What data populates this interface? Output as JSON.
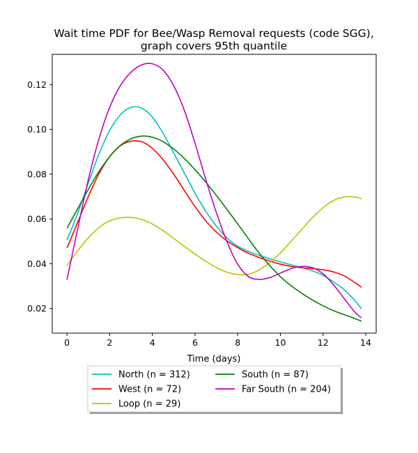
{
  "chart_data": {
    "type": "line",
    "title": "Wait time PDF for Bee/Wasp Removal  requests (code SGG),",
    "subtitle": "graph covers 95th quantile",
    "xlabel": "Time (days)",
    "ylabel": "",
    "xlim": [
      -0.69,
      14.49
    ],
    "ylim": [
      0.009,
      0.1335
    ],
    "xticks": [
      0,
      2,
      4,
      6,
      8,
      10,
      12,
      14
    ],
    "yticks": [
      0.02,
      0.04,
      0.06,
      0.08,
      0.1,
      0.12
    ],
    "ytick_labels": [
      "0.02",
      "0.04",
      "0.06",
      "0.08",
      "0.10",
      "0.12"
    ],
    "grid": false,
    "legend_position": "below-center",
    "legend_columns": 2,
    "series": [
      {
        "name": "North (n = 312)",
        "color": "#00bfbf",
        "x": [
          0,
          0.5,
          1,
          1.5,
          2,
          2.5,
          3,
          3.5,
          4,
          4.5,
          5,
          5.5,
          6,
          6.5,
          7,
          7.5,
          8,
          8.5,
          9,
          9.5,
          10,
          10.5,
          11,
          11.5,
          12,
          12.5,
          13,
          13.5,
          13.8
        ],
        "y": [
          0.0505,
          0.0625,
          0.076,
          0.089,
          0.0995,
          0.1065,
          0.1098,
          0.1095,
          0.1055,
          0.0983,
          0.0895,
          0.0805,
          0.0715,
          0.0635,
          0.0568,
          0.0515,
          0.0478,
          0.0455,
          0.0437,
          0.0422,
          0.0408,
          0.0395,
          0.0383,
          0.0368,
          0.0348,
          0.0318,
          0.0283,
          0.0235,
          0.0198
        ]
      },
      {
        "name": "West (n = 72)",
        "color": "#ff0000",
        "x": [
          0,
          0.5,
          1,
          1.5,
          2,
          2.5,
          3,
          3.5,
          4,
          4.5,
          5,
          5.5,
          6,
          6.5,
          7,
          7.5,
          8,
          8.5,
          9,
          9.5,
          10,
          10.5,
          11,
          11.5,
          12,
          12.5,
          13,
          13.5,
          13.8
        ],
        "y": [
          0.047,
          0.0585,
          0.07,
          0.0802,
          0.0878,
          0.0927,
          0.0947,
          0.0945,
          0.0915,
          0.0865,
          0.08,
          0.0727,
          0.0655,
          0.0592,
          0.0542,
          0.0502,
          0.0472,
          0.0447,
          0.0428,
          0.0412,
          0.0398,
          0.0388,
          0.0382,
          0.0378,
          0.0373,
          0.0363,
          0.0345,
          0.0315,
          0.0295
        ]
      },
      {
        "name": "Loop (n = 29)",
        "color": "#bfbf00",
        "x": [
          0,
          0.5,
          1,
          1.5,
          2,
          2.5,
          3,
          3.5,
          4,
          4.5,
          5,
          5.5,
          6,
          6.5,
          7,
          7.5,
          8,
          8.5,
          9,
          9.5,
          10,
          10.5,
          11,
          11.5,
          12,
          12.5,
          13,
          13.5,
          13.8
        ],
        "y": [
          0.0392,
          0.0458,
          0.0515,
          0.0562,
          0.0591,
          0.0605,
          0.0607,
          0.0598,
          0.0577,
          0.0548,
          0.0513,
          0.0478,
          0.0443,
          0.0411,
          0.0383,
          0.0362,
          0.0352,
          0.0353,
          0.0372,
          0.0405,
          0.0448,
          0.05,
          0.0553,
          0.0605,
          0.065,
          0.0683,
          0.0698,
          0.0698,
          0.069
        ]
      },
      {
        "name": "South (n = 87)",
        "color": "#008000",
        "x": [
          0,
          0.5,
          1,
          1.5,
          2,
          2.5,
          3,
          3.5,
          4,
          4.5,
          5,
          5.5,
          6,
          6.5,
          7,
          7.5,
          8,
          8.5,
          9,
          9.5,
          10,
          10.5,
          11,
          11.5,
          12,
          12.5,
          13,
          13.5,
          13.8
        ],
        "y": [
          0.0558,
          0.0645,
          0.0732,
          0.0812,
          0.0878,
          0.0928,
          0.0958,
          0.097,
          0.0965,
          0.0945,
          0.0912,
          0.087,
          0.082,
          0.0765,
          0.0705,
          0.0642,
          0.0578,
          0.0512,
          0.0448,
          0.0392,
          0.0342,
          0.0302,
          0.0268,
          0.0238,
          0.0212,
          0.019,
          0.0172,
          0.0155,
          0.0143
        ]
      },
      {
        "name": "Far South (n = 204)",
        "color": "#bf00bf",
        "x": [
          0,
          0.5,
          1,
          1.5,
          2,
          2.5,
          3,
          3.5,
          4,
          4.5,
          5,
          5.5,
          6,
          6.5,
          7,
          7.5,
          8,
          8.5,
          9,
          9.5,
          10,
          10.5,
          11,
          11.5,
          12,
          12.5,
          13,
          13.5,
          13.8
        ],
        "y": [
          0.0328,
          0.0555,
          0.0775,
          0.0958,
          0.1098,
          0.1195,
          0.1255,
          0.1288,
          0.1293,
          0.1265,
          0.1195,
          0.1085,
          0.0938,
          0.0778,
          0.0628,
          0.0498,
          0.0398,
          0.0343,
          0.033,
          0.0338,
          0.0358,
          0.0378,
          0.0388,
          0.0382,
          0.0355,
          0.0305,
          0.0243,
          0.0183,
          0.0158
        ]
      }
    ]
  }
}
